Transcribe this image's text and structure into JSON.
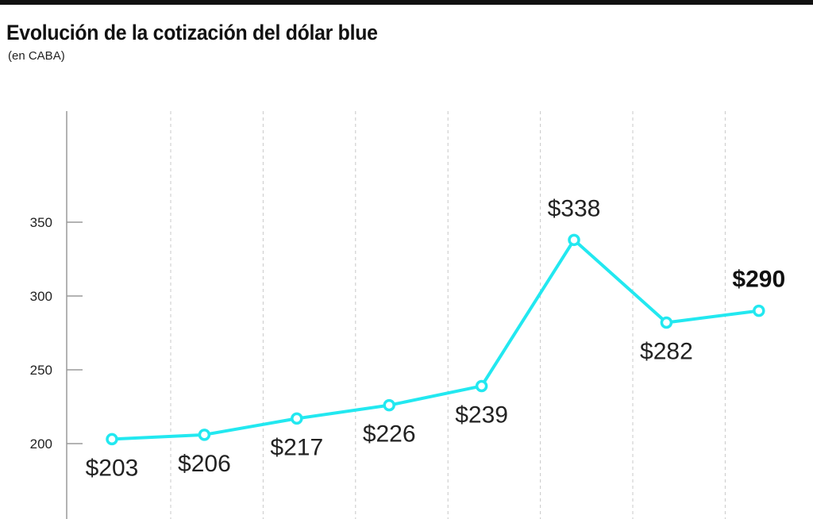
{
  "title": "Evolución de la cotización del dólar blue",
  "subtitle": "(en CABA)",
  "colors": {
    "line": "#22e8f0",
    "axis": "#9a9a9a",
    "grid": "#c8c8c8",
    "text": "#222222"
  },
  "chart_data": {
    "type": "line",
    "title": "Evolución de la cotización del dólar blue",
    "subtitle": "(en CABA)",
    "xlabel": "",
    "ylabel": "",
    "y_ticks": [
      200,
      250,
      300,
      350
    ],
    "ylim": [
      178,
      361
    ],
    "grid": "vertical-dashed",
    "series": [
      {
        "values": [
          203,
          206,
          217,
          226,
          239,
          338,
          282,
          290
        ],
        "labels": [
          "$203",
          "$206",
          "$217",
          "$226",
          "$239",
          "$338",
          "$282",
          "$290"
        ],
        "label_position": [
          "below",
          "below",
          "below",
          "below",
          "below",
          "above",
          "below",
          "above"
        ],
        "highlight_last": true
      }
    ]
  }
}
